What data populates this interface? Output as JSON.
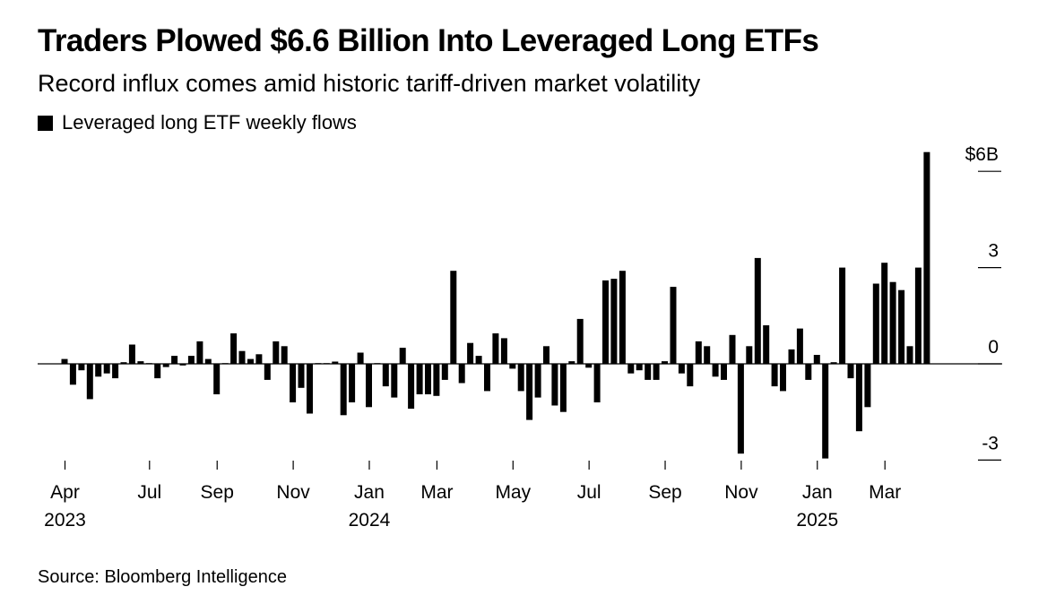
{
  "chart_data": {
    "type": "bar",
    "title": "Traders Plowed $6.6 Billion Into Leveraged Long ETFs",
    "subtitle": "Record influx comes amid historic tariff-driven market volatility",
    "legend": [
      {
        "name": "Leveraged long ETF weekly flows",
        "color": "#000000"
      }
    ],
    "legend_placement": "top-left",
    "xlabel": "",
    "ylabel": "",
    "ylim": [
      -3,
      6
    ],
    "y_ticks": [
      {
        "value": 6,
        "label": "$6B"
      },
      {
        "value": 3,
        "label": "3"
      },
      {
        "value": 0,
        "label": "0"
      },
      {
        "value": -3,
        "label": "-3"
      }
    ],
    "y_axis_side": "right",
    "x_ticks": [
      {
        "index": 0,
        "label": "Apr",
        "year": "2023"
      },
      {
        "index": 10,
        "label": "Jul",
        "year": ""
      },
      {
        "index": 18,
        "label": "Sep",
        "year": ""
      },
      {
        "index": 27,
        "label": "Nov",
        "year": ""
      },
      {
        "index": 36,
        "label": "Jan",
        "year": "2024"
      },
      {
        "index": 44,
        "label": "Mar",
        "year": ""
      },
      {
        "index": 53,
        "label": "May",
        "year": ""
      },
      {
        "index": 62,
        "label": "Jul",
        "year": ""
      },
      {
        "index": 71,
        "label": "Sep",
        "year": ""
      },
      {
        "index": 80,
        "label": "Nov",
        "year": ""
      },
      {
        "index": 89,
        "label": "Jan",
        "year": "2025"
      },
      {
        "index": 97,
        "label": "Mar",
        "year": ""
      }
    ],
    "units": "USD billions",
    "frequency": "weekly",
    "values": [
      0.15,
      -0.65,
      -0.2,
      -1.1,
      -0.4,
      -0.3,
      -0.45,
      0.05,
      0.6,
      0.08,
      0.0,
      -0.45,
      -0.1,
      0.25,
      -0.05,
      0.25,
      0.7,
      0.15,
      -0.95,
      0.0,
      0.95,
      0.4,
      0.15,
      0.3,
      -0.5,
      0.7,
      0.55,
      -1.2,
      -0.75,
      -1.55,
      0.0,
      0.0,
      0.07,
      -1.6,
      -1.2,
      0.35,
      -1.35,
      0.0,
      -0.7,
      -1.05,
      0.5,
      -1.4,
      -0.95,
      -0.95,
      -1.0,
      -0.5,
      2.9,
      -0.6,
      0.65,
      0.25,
      -0.85,
      0.95,
      0.8,
      -0.15,
      -0.85,
      -1.75,
      -1.05,
      0.55,
      -1.3,
      -1.5,
      0.08,
      1.4,
      -0.12,
      -1.2,
      2.6,
      2.65,
      2.9,
      -0.3,
      -0.2,
      -0.5,
      -0.5,
      0.08,
      2.4,
      -0.3,
      -0.7,
      0.7,
      0.55,
      -0.4,
      -0.5,
      0.9,
      -2.8,
      0.55,
      3.3,
      1.2,
      -0.7,
      -0.85,
      0.45,
      1.1,
      -0.5,
      0.28,
      -2.95,
      0.05,
      3.0,
      -0.45,
      -2.1,
      -1.35,
      2.5,
      3.15,
      2.55,
      2.3,
      0.55,
      3.0,
      6.6
    ]
  },
  "header": {
    "title": "Traders Plowed $6.6 Billion Into Leveraged Long ETFs",
    "subtitle": "Record influx comes amid historic tariff-driven market volatility",
    "legend_label": "Leveraged long ETF weekly flows"
  },
  "footer": {
    "source": "Source: Bloomberg Intelligence"
  }
}
